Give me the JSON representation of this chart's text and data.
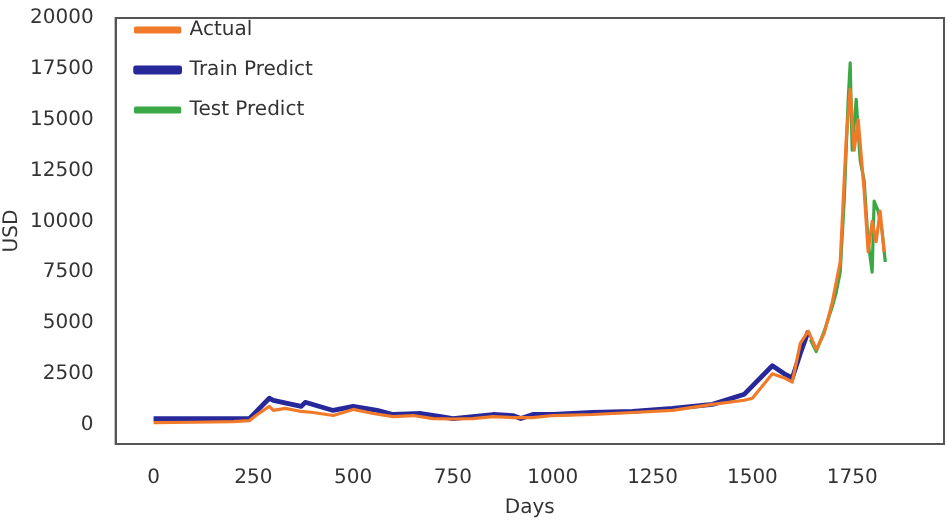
{
  "chart_data": {
    "type": "line",
    "xlabel": "Days",
    "ylabel": "USD",
    "xlim": [
      -95,
      1980
    ],
    "ylim": [
      -950,
      20000
    ],
    "xticks": [
      0,
      250,
      500,
      750,
      1000,
      1250,
      1500,
      1750
    ],
    "yticks": [
      0,
      2500,
      5000,
      7500,
      10000,
      12500,
      15000,
      17500,
      20000
    ],
    "grid": false,
    "legend": "top left",
    "marker": "none",
    "line_style": "solid",
    "series": [
      {
        "name": "Actual",
        "color": "#f07a2a",
        "x": [
          0,
          100,
          200,
          240,
          260,
          290,
          300,
          330,
          370,
          400,
          450,
          500,
          550,
          600,
          650,
          700,
          750,
          800,
          850,
          900,
          950,
          1000,
          1100,
          1200,
          1300,
          1400,
          1480,
          1500,
          1550,
          1580,
          1600,
          1620,
          1640,
          1660,
          1680,
          1700,
          1720,
          1735,
          1745,
          1755,
          1765,
          1780,
          1790,
          1800,
          1810,
          1820,
          1830
        ],
        "values": [
          100,
          120,
          150,
          200,
          500,
          900,
          700,
          800,
          650,
          600,
          450,
          750,
          550,
          400,
          450,
          300,
          280,
          300,
          400,
          350,
          350,
          450,
          500,
          600,
          700,
          1000,
          1200,
          1300,
          2500,
          2300,
          2100,
          4000,
          4600,
          3700,
          4500,
          6000,
          8000,
          14000,
          16500,
          13500,
          15000,
          11500,
          8500,
          10000,
          9000,
          10500,
          8500
        ]
      },
      {
        "name": "Train Predict",
        "color": "#27289a",
        "x": [
          0,
          240,
          290,
          300,
          370,
          380,
          450,
          500,
          560,
          600,
          670,
          720,
          750,
          850,
          900,
          920,
          950,
          1000,
          1100,
          1200,
          1300,
          1400,
          1480,
          1520,
          1550,
          1580,
          1600,
          1620,
          1640
        ],
        "values": [
          300,
          300,
          1300,
          1200,
          900,
          1100,
          700,
          900,
          700,
          500,
          550,
          400,
          300,
          500,
          450,
          300,
          500,
          500,
          600,
          650,
          800,
          1000,
          1500,
          2300,
          2900,
          2500,
          2300,
          3500,
          4600
        ]
      },
      {
        "name": "Test Predict",
        "color": "#3aa845",
        "x": [
          1645,
          1660,
          1680,
          1700,
          1710,
          1720,
          1730,
          1740,
          1745,
          1750,
          1760,
          1770,
          1780,
          1790,
          1800,
          1805,
          1815,
          1825,
          1833
        ],
        "values": [
          4200,
          3600,
          4600,
          5800,
          6500,
          7500,
          11000,
          16000,
          17800,
          13500,
          16000,
          13000,
          12000,
          9000,
          7500,
          11000,
          10500,
          9500,
          8000
        ]
      }
    ]
  }
}
